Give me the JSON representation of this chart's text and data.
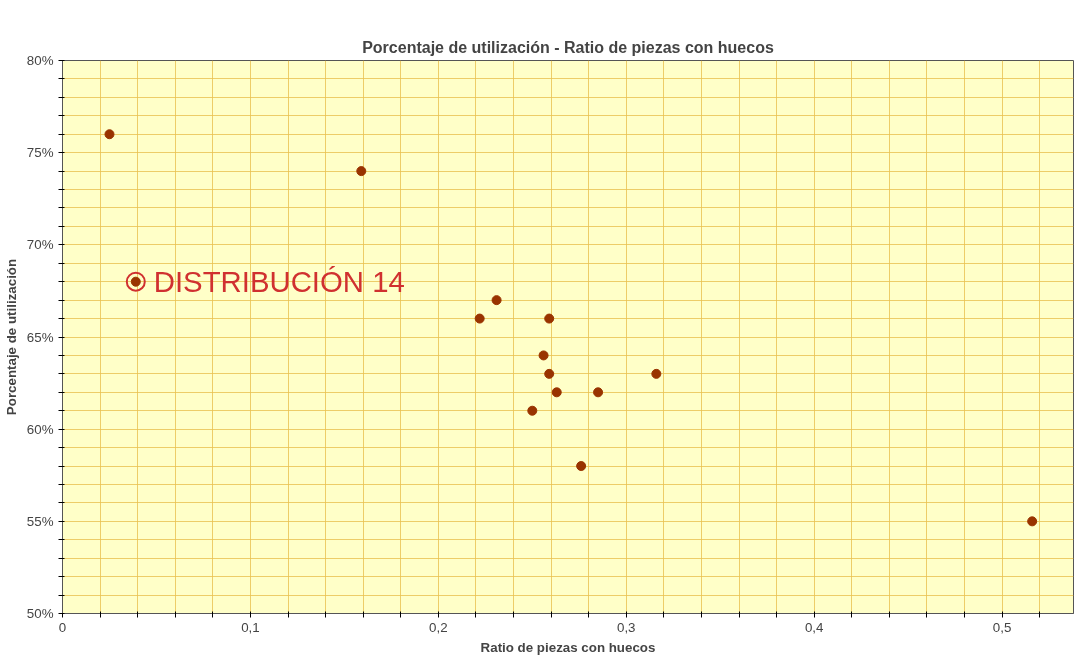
{
  "chart_data": {
    "type": "scatter",
    "title": "Porcentaje de utilización - Ratio de piezas con huecos",
    "xlabel": "Ratio de piezas con huecos",
    "ylabel": "Porcentaje de utilización",
    "x": [
      0.025,
      0.159,
      0.039,
      0.222,
      0.231,
      0.259,
      0.256,
      0.259,
      0.263,
      0.25,
      0.285,
      0.316,
      0.276,
      0.516
    ],
    "series": [
      {
        "color": "#993300",
        "values": [
          76,
          74,
          68,
          66,
          67,
          66,
          64,
          63,
          62,
          61,
          62,
          63,
          58,
          55
        ]
      }
    ],
    "marker": "circle",
    "grid": true,
    "xlim": [
      0,
      0.538
    ],
    "ylim": [
      50,
      80
    ],
    "xticks": [
      0,
      {
        "value": 0.02,
        "label": null
      },
      {
        "value": 0.04,
        "label": null
      },
      {
        "value": 0.06,
        "label": null
      },
      {
        "value": 0.08,
        "label": null
      },
      {
        "value": 0.1,
        "label": "0,1"
      },
      {
        "value": 0.12,
        "label": null
      },
      {
        "value": 0.14,
        "label": null
      },
      {
        "value": 0.16,
        "label": null
      },
      {
        "value": 0.18,
        "label": null
      },
      {
        "value": 0.2,
        "label": "0,2"
      },
      {
        "value": 0.22,
        "label": null
      },
      {
        "value": 0.24,
        "label": null
      },
      {
        "value": 0.26,
        "label": null
      },
      {
        "value": 0.28,
        "label": null
      },
      {
        "value": 0.3,
        "label": "0,3"
      },
      {
        "value": 0.32,
        "label": null
      },
      {
        "value": 0.34,
        "label": null
      },
      {
        "value": 0.36,
        "label": null
      },
      {
        "value": 0.38,
        "label": null
      },
      {
        "value": 0.4,
        "label": "0,4"
      },
      {
        "value": 0.42,
        "label": null
      },
      {
        "value": 0.44,
        "label": null
      },
      {
        "value": 0.46,
        "label": null
      },
      {
        "value": 0.48,
        "label": null
      },
      {
        "value": 0.5,
        "label": "0,5"
      },
      {
        "value": 0.52,
        "label": null
      }
    ],
    "yticks": [
      {
        "value": 50,
        "label": "50%"
      },
      {
        "value": 51,
        "label": null
      },
      {
        "value": 52,
        "label": null
      },
      {
        "value": 53,
        "label": null
      },
      {
        "value": 54,
        "label": null
      },
      {
        "value": 55,
        "label": "55%"
      },
      {
        "value": 56,
        "label": null
      },
      {
        "value": 57,
        "label": null
      },
      {
        "value": 58,
        "label": null
      },
      {
        "value": 59,
        "label": null
      },
      {
        "value": 60,
        "label": "60%"
      },
      {
        "value": 61,
        "label": null
      },
      {
        "value": 62,
        "label": null
      },
      {
        "value": 63,
        "label": null
      },
      {
        "value": 64,
        "label": null
      },
      {
        "value": 65,
        "label": "65%"
      },
      {
        "value": 66,
        "label": null
      },
      {
        "value": 67,
        "label": null
      },
      {
        "value": 68,
        "label": null
      },
      {
        "value": 69,
        "label": null
      },
      {
        "value": 70,
        "label": "70%"
      },
      {
        "value": 71,
        "label": null
      },
      {
        "value": 72,
        "label": null
      },
      {
        "value": 73,
        "label": null
      },
      {
        "value": 74,
        "label": null
      },
      {
        "value": 75,
        "label": "75%"
      },
      {
        "value": 76,
        "label": null
      },
      {
        "value": 77,
        "label": null
      },
      {
        "value": 78,
        "label": null
      },
      {
        "value": 79,
        "label": null
      },
      {
        "value": 80,
        "label": "80%"
      }
    ],
    "annotations": [
      {
        "text": "DISTRIBUCIÓN 14",
        "x": 0.039,
        "y": 68
      }
    ]
  }
}
